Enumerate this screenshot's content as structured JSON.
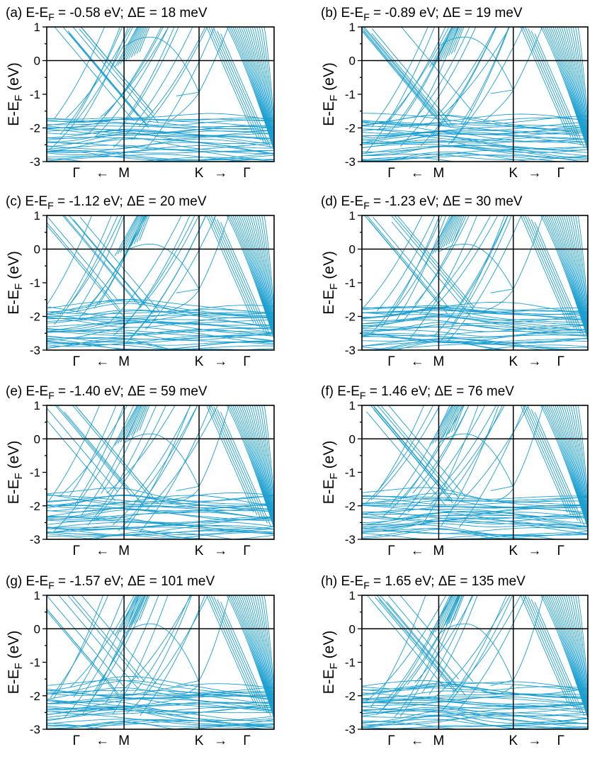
{
  "chart_data": [
    {
      "id": "a",
      "type": "line",
      "label": "(a)",
      "ef_value": "-0.58",
      "delta_value": "18",
      "crossing_E": -0.95,
      "k_point_split_meV": 18,
      "title_prefix": "(a) E-E",
      "title_sub": "F",
      "title_rest": " = -0.58 eV; ΔE = 18 meV",
      "ylabel_prefix": "E-E",
      "ylabel_sub": "F",
      "ylabel_suffix": " (eV)",
      "ylim": [
        -3,
        1
      ],
      "yticks": [
        "1",
        "0",
        "-1",
        "-2",
        "-3"
      ],
      "xticks": [
        "Γ",
        "←",
        "M",
        "K",
        "→",
        "Γ"
      ]
    },
    {
      "id": "b",
      "type": "line",
      "label": "(b)",
      "ef_value": "-0.89",
      "delta_value": "19",
      "crossing_E": -0.88,
      "k_point_split_meV": 19,
      "title_prefix": "(b) E-E",
      "title_sub": "F",
      "title_rest": " = -0.89 eV; ΔE = 19 meV",
      "ylabel_prefix": "E-E",
      "ylabel_sub": "F",
      "ylabel_suffix": " (eV)",
      "ylim": [
        -3,
        1
      ],
      "yticks": [
        "1",
        "0",
        "-1",
        "-2",
        "-3"
      ],
      "xticks": [
        "Γ",
        "←",
        "M",
        "K",
        "→",
        "Γ"
      ]
    },
    {
      "id": "c",
      "type": "line",
      "label": "(c)",
      "ef_value": "-1.12",
      "delta_value": "20",
      "crossing_E": -1.2,
      "k_point_split_meV": 20,
      "title_prefix": "(c) E-E",
      "title_sub": "F",
      "title_rest": " = -1.12 eV; ΔE = 20 meV",
      "ylabel_prefix": "E-E",
      "ylabel_sub": "F",
      "ylabel_suffix": " (eV)",
      "ylim": [
        -3,
        1
      ],
      "yticks": [
        "1",
        "0",
        "-1",
        "-2",
        "-3"
      ],
      "xticks": [
        "Γ",
        "←",
        "M",
        "K",
        "→",
        "Γ"
      ]
    },
    {
      "id": "d",
      "type": "line",
      "label": "(d)",
      "ef_value": "-1.23",
      "delta_value": "30",
      "crossing_E": -1.2,
      "k_point_split_meV": 30,
      "title_prefix": "(d) E-E",
      "title_sub": "F",
      "title_rest": " = -1.23 eV; ΔE = 30 meV",
      "ylabel_prefix": "E-E",
      "ylabel_sub": "F",
      "ylabel_suffix": " (eV)",
      "ylim": [
        -3,
        1
      ],
      "yticks": [
        "1",
        "0",
        "-1",
        "-2",
        "-3"
      ],
      "xticks": [
        "Γ",
        "←",
        "M",
        "K",
        "→",
        "Γ"
      ]
    },
    {
      "id": "e",
      "type": "line",
      "label": "(e)",
      "ef_value": "-1.40",
      "delta_value": "59",
      "crossing_E": -1.45,
      "k_point_split_meV": 59,
      "title_prefix": "(e) E-E",
      "title_sub": "F",
      "title_rest": " = -1.40 eV; ΔE = 59 meV",
      "ylabel_prefix": "E-E",
      "ylabel_sub": "F",
      "ylabel_suffix": " (eV)",
      "ylim": [
        -3,
        1
      ],
      "yticks": [
        "1",
        "0",
        "-1",
        "-2",
        "-3"
      ],
      "xticks": [
        "Γ",
        "←",
        "M",
        "K",
        "→",
        "Γ"
      ]
    },
    {
      "id": "f",
      "type": "line",
      "label": "(f)",
      "ef_value": "1.46",
      "delta_value": "76",
      "crossing_E": -1.45,
      "k_point_split_meV": 76,
      "title_prefix": "(f) E-E",
      "title_sub": "F",
      "title_rest": " = 1.46 eV; ΔE = 76 meV",
      "ylabel_prefix": "E-E",
      "ylabel_sub": "F",
      "ylabel_suffix": " (eV)",
      "ylim": [
        -3,
        1
      ],
      "yticks": [
        "1",
        "0",
        "-1",
        "-2",
        "-3"
      ],
      "xticks": [
        "Γ",
        "←",
        "M",
        "K",
        "→",
        "Γ"
      ]
    },
    {
      "id": "g",
      "type": "line",
      "label": "(g)",
      "ef_value": "-1.57",
      "delta_value": "101",
      "crossing_E": -1.6,
      "k_point_split_meV": 101,
      "title_prefix": "(g) E-E",
      "title_sub": "F",
      "title_rest": " = -1.57 eV; ΔE = 101 meV",
      "ylabel_prefix": "E-E",
      "ylabel_sub": "F",
      "ylabel_suffix": " (eV)",
      "ylim": [
        -3,
        1
      ],
      "yticks": [
        "1",
        "0",
        "-1",
        "-2",
        "-3"
      ],
      "xticks": [
        "Γ",
        "←",
        "M",
        "K",
        "→",
        "Γ"
      ]
    },
    {
      "id": "h",
      "type": "line",
      "label": "(h)",
      "ef_value": "1.65",
      "delta_value": "135",
      "crossing_E": -1.6,
      "k_point_split_meV": 135,
      "title_prefix": "(h) E-E",
      "title_sub": "F",
      "title_rest": " = 1.65 eV; ΔE = 135 meV",
      "ylabel_prefix": "E-E",
      "ylabel_sub": "F",
      "ylabel_suffix": " (eV)",
      "ylim": [
        -3,
        1
      ],
      "yticks": [
        "1",
        "0",
        "-1",
        "-2",
        "-3"
      ],
      "xticks": [
        "Γ",
        "←",
        "M",
        "K",
        "→",
        "Γ"
      ]
    }
  ],
  "colors": {
    "band": "#1a9fd0",
    "axis": "#000000",
    "background": "#ffffff"
  }
}
